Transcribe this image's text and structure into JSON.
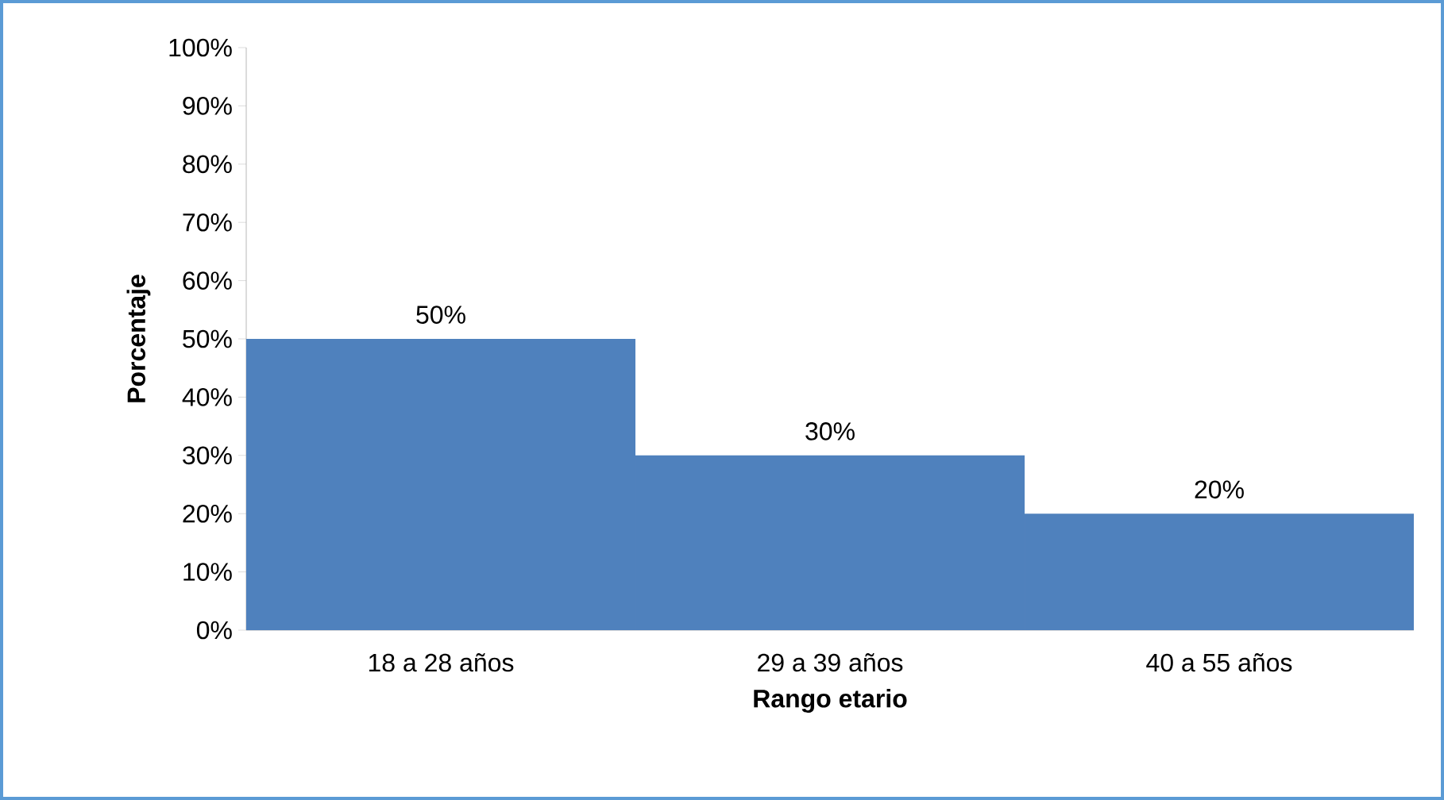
{
  "chart_data": {
    "type": "bar",
    "xlabel": "Rango etario",
    "ylabel": "Porcentaje",
    "categories": [
      "18 a 28 años",
      "29 a 39 años",
      "40 a 55 años"
    ],
    "values": [
      50,
      30,
      20
    ],
    "value_labels": [
      "50%",
      "30%",
      "20%"
    ],
    "color": "#4f81bd",
    "ylim": [
      0,
      100
    ],
    "yticks": [
      {
        "value": 0,
        "label": "0%"
      },
      {
        "value": 10,
        "label": "10%"
      },
      {
        "value": 20,
        "label": "20%"
      },
      {
        "value": 30,
        "label": "30%"
      },
      {
        "value": 40,
        "label": "40%"
      },
      {
        "value": 50,
        "label": "50%"
      },
      {
        "value": 60,
        "label": "60%"
      },
      {
        "value": 70,
        "label": "70%"
      },
      {
        "value": 80,
        "label": "80%"
      },
      {
        "value": 90,
        "label": "90%"
      },
      {
        "value": 100,
        "label": "100%"
      }
    ],
    "grid": false
  }
}
